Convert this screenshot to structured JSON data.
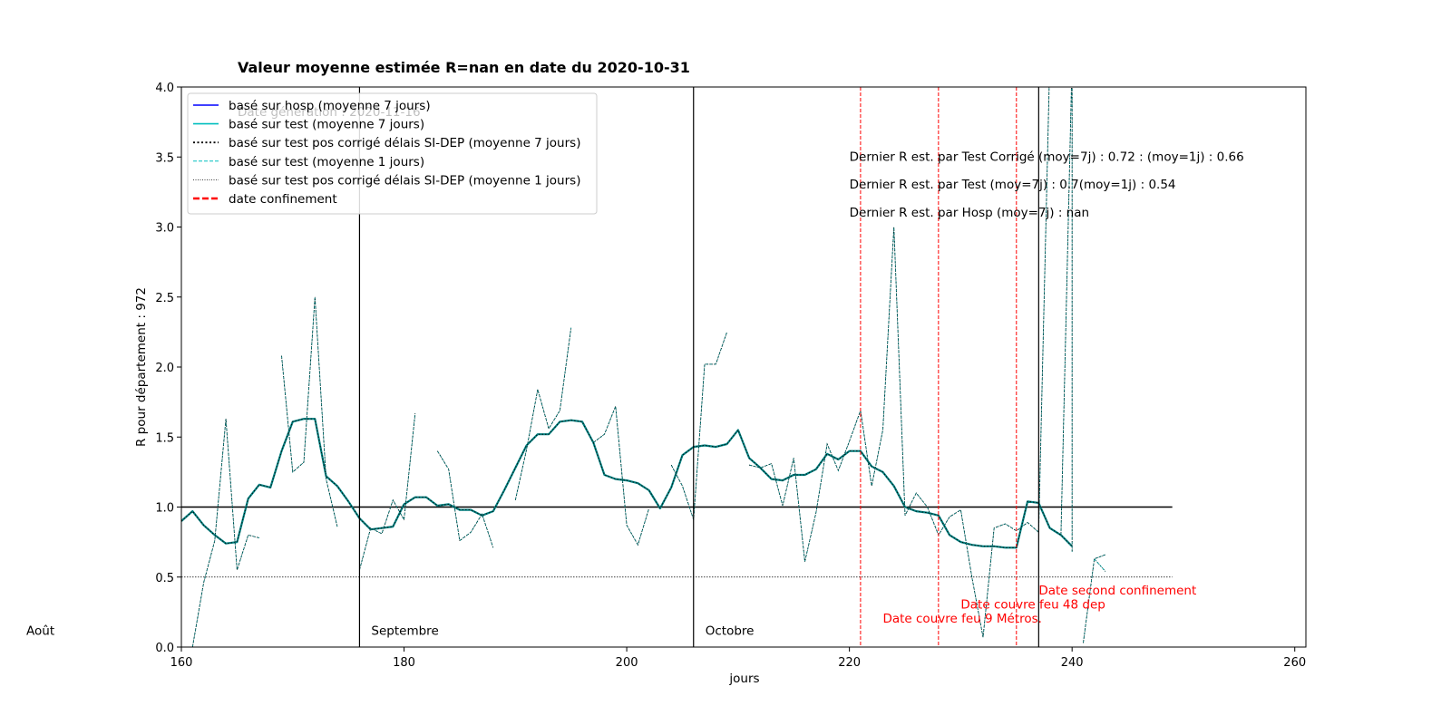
{
  "chart_data": {
    "type": "line",
    "title": "Valeur moyenne estimée R=nan en date du  2020-10-31",
    "subtitle": "Date génération : 2020-11-16",
    "xlabel": "jours",
    "ylabel": "R pour département : 972",
    "xlim": [
      160,
      261
    ],
    "ylim": [
      0,
      4
    ],
    "x_ticks": [
      160,
      180,
      200,
      220,
      240,
      260
    ],
    "y_ticks": [
      0.0,
      0.5,
      1.0,
      1.5,
      2.0,
      2.5,
      3.0,
      3.5,
      4.0
    ],
    "grid": false,
    "legend_position": "top-left",
    "legend": [
      {
        "label": "basé sur hosp (moyenne 7 jours)",
        "color": "#0000ff",
        "style": "solid"
      },
      {
        "label": "basé sur test (moyenne 7 jours)",
        "color": "#00bfbf",
        "style": "solid"
      },
      {
        "label": "basé sur test pos corrigé délais SI-DEP (moyenne 7 jours)",
        "color": "#000000",
        "style": "dotted"
      },
      {
        "label": "basé sur test (moyenne 1 jours)",
        "color": "#00bfbf",
        "style": "dashed"
      },
      {
        "label": "basé sur test pos corrigé délais SI-DEP (moyenne 1 jours)",
        "color": "#000000",
        "style": "fine-dotted"
      },
      {
        "label": "date confinement",
        "color": "#ff0000",
        "style": "dashed"
      }
    ],
    "series": [
      {
        "name": "basé sur test (moyenne 7 jours)",
        "color": "#008080",
        "width": 2.2,
        "points": [
          [
            160,
            0.9
          ],
          [
            161,
            0.97
          ],
          [
            162,
            0.87
          ],
          [
            163,
            0.8
          ],
          [
            164,
            0.74
          ],
          [
            165,
            0.75
          ],
          [
            166,
            1.06
          ],
          [
            167,
            1.16
          ],
          [
            168,
            1.14
          ],
          [
            169,
            1.4
          ],
          [
            170,
            1.61
          ],
          [
            171,
            1.63
          ],
          [
            172,
            1.63
          ],
          [
            173,
            1.22
          ],
          [
            174,
            1.15
          ],
          [
            175,
            1.04
          ],
          [
            176,
            0.92
          ],
          [
            177,
            0.84
          ],
          [
            178,
            0.85
          ],
          [
            179,
            0.86
          ],
          [
            180,
            1.02
          ],
          [
            181,
            1.07
          ],
          [
            182,
            1.07
          ],
          [
            183,
            1.01
          ],
          [
            184,
            1.02
          ],
          [
            185,
            0.98
          ],
          [
            186,
            0.98
          ],
          [
            187,
            0.94
          ],
          [
            188,
            0.97
          ],
          [
            189,
            1.12
          ],
          [
            190,
            1.28
          ],
          [
            191,
            1.44
          ],
          [
            192,
            1.52
          ],
          [
            193,
            1.52
          ],
          [
            194,
            1.61
          ],
          [
            195,
            1.62
          ],
          [
            196,
            1.61
          ],
          [
            197,
            1.46
          ],
          [
            198,
            1.23
          ],
          [
            199,
            1.2
          ],
          [
            200,
            1.19
          ],
          [
            201,
            1.17
          ],
          [
            202,
            1.12
          ],
          [
            203,
            0.99
          ],
          [
            204,
            1.14
          ],
          [
            205,
            1.37
          ],
          [
            206,
            1.43
          ],
          [
            207,
            1.44
          ],
          [
            208,
            1.43
          ],
          [
            209,
            1.45
          ],
          [
            210,
            1.55
          ],
          [
            211,
            1.35
          ],
          [
            212,
            1.28
          ],
          [
            213,
            1.2
          ],
          [
            214,
            1.19
          ],
          [
            215,
            1.23
          ],
          [
            216,
            1.23
          ],
          [
            217,
            1.27
          ],
          [
            218,
            1.38
          ],
          [
            219,
            1.34
          ],
          [
            220,
            1.4
          ],
          [
            221,
            1.4
          ],
          [
            222,
            1.29
          ],
          [
            223,
            1.25
          ],
          [
            224,
            1.15
          ],
          [
            225,
            1.0
          ],
          [
            226,
            0.97
          ],
          [
            227,
            0.96
          ],
          [
            228,
            0.94
          ],
          [
            229,
            0.8
          ],
          [
            230,
            0.75
          ],
          [
            231,
            0.73
          ],
          [
            232,
            0.72
          ],
          [
            233,
            0.72
          ],
          [
            234,
            0.71
          ],
          [
            235,
            0.71
          ],
          [
            236,
            1.04
          ],
          [
            237,
            1.03
          ],
          [
            238,
            0.85
          ],
          [
            239,
            0.8
          ],
          [
            240,
            0.72
          ]
        ]
      },
      {
        "name": "basé sur test (moyenne 1 jours)",
        "color": "#008080",
        "width": 1.0,
        "segments": [
          [
            [
              161,
              0.0
            ],
            [
              162,
              0.46
            ],
            [
              163,
              0.76
            ],
            [
              164,
              1.63
            ],
            [
              165,
              0.55
            ],
            [
              166,
              0.8
            ],
            [
              167,
              0.78
            ]
          ],
          [
            [
              169,
              2.08
            ],
            [
              170,
              1.25
            ],
            [
              171,
              1.32
            ],
            [
              172,
              2.5
            ],
            [
              173,
              1.2
            ],
            [
              174,
              0.86
            ]
          ],
          [
            [
              176,
              0.55
            ],
            [
              177,
              0.85
            ],
            [
              178,
              0.81
            ],
            [
              179,
              1.05
            ],
            [
              180,
              0.91
            ],
            [
              181,
              1.67
            ]
          ],
          [
            [
              183,
              1.4
            ],
            [
              184,
              1.27
            ],
            [
              185,
              0.76
            ],
            [
              186,
              0.82
            ],
            [
              187,
              0.95
            ],
            [
              188,
              0.71
            ]
          ],
          [
            [
              190,
              1.05
            ],
            [
              191,
              1.41
            ],
            [
              192,
              1.84
            ],
            [
              193,
              1.56
            ],
            [
              194,
              1.69
            ],
            [
              195,
              2.28
            ]
          ],
          [
            [
              197,
              1.46
            ],
            [
              198,
              1.52
            ],
            [
              199,
              1.72
            ],
            [
              200,
              0.87
            ],
            [
              201,
              0.73
            ],
            [
              202,
              0.99
            ]
          ],
          [
            [
              204,
              1.3
            ],
            [
              205,
              1.15
            ],
            [
              206,
              0.91
            ],
            [
              207,
              2.02
            ],
            [
              208,
              2.02
            ],
            [
              209,
              2.25
            ]
          ],
          [
            [
              211,
              1.3
            ],
            [
              212,
              1.28
            ],
            [
              213,
              1.31
            ],
            [
              214,
              1.01
            ],
            [
              215,
              1.35
            ],
            [
              216,
              0.61
            ],
            [
              217,
              0.96
            ],
            [
              218,
              1.45
            ],
            [
              219,
              1.26
            ],
            [
              220,
              1.47
            ],
            [
              221,
              1.69
            ],
            [
              222,
              1.15
            ],
            [
              223,
              1.55
            ],
            [
              224,
              3.0
            ],
            [
              225,
              0.94
            ],
            [
              226,
              1.1
            ],
            [
              227,
              1.0
            ],
            [
              228,
              0.8
            ],
            [
              229,
              0.93
            ],
            [
              230,
              0.98
            ],
            [
              231,
              0.5
            ],
            [
              232,
              0.07
            ],
            [
              233,
              0.85
            ],
            [
              234,
              0.88
            ],
            [
              235,
              0.83
            ],
            [
              236,
              0.89
            ],
            [
              237,
              0.82
            ],
            [
              238,
              4.2
            ]
          ],
          [
            [
              239,
              0.8
            ],
            [
              240,
              4.2
            ],
            [
              240,
              0.68
            ]
          ],
          [
            [
              241,
              0.03
            ],
            [
              242,
              0.63
            ],
            [
              243,
              0.66
            ]
          ]
        ]
      },
      {
        "name": "basé sur test (moyenne 1 jours) tail",
        "color": "#00bfbf",
        "width": 1.0,
        "segments": [
          [
            [
              242,
              0.63
            ],
            [
              243,
              0.54
            ]
          ]
        ]
      }
    ],
    "hlines": [
      {
        "y": 1.0,
        "x_start": 160,
        "x_end": 249,
        "color": "#000000",
        "width": 1.6,
        "style": "solid"
      },
      {
        "y": 0.5,
        "x_start": 160,
        "x_end": 249,
        "color": "#000000",
        "width": 0.7,
        "style": "dotted"
      }
    ],
    "month_lines": [
      {
        "x": 176,
        "label": "Septembre"
      },
      {
        "x": 206,
        "label": "Octobre"
      },
      {
        "x": 237,
        "label": ""
      }
    ],
    "month_label_left": "Août",
    "red_lines": [
      221,
      228,
      235
    ],
    "annotations_red": [
      {
        "text": "Date second confinement",
        "x": 237,
        "y": 0.4
      },
      {
        "text": "Date couvre feu 48 dep",
        "x": 230,
        "y": 0.3
      },
      {
        "text": "Date couvre feu 9 Métros.",
        "x": 223,
        "y": 0.2
      }
    ],
    "annotations": [
      {
        "text": "Dernier R est. par Test Corrigé     (moy=7j) : 0.72   : (moy=1j) : 0.66",
        "x": 220,
        "y": 3.5
      },
      {
        "text": "Dernier R est. par Test    (moy=7j) : 0.7(moy=1j) : 0.54",
        "x": 220,
        "y": 3.3
      },
      {
        "text": "Dernier R est. par Hosp    (moy=7j) : nan",
        "x": 220,
        "y": 3.1
      }
    ]
  }
}
